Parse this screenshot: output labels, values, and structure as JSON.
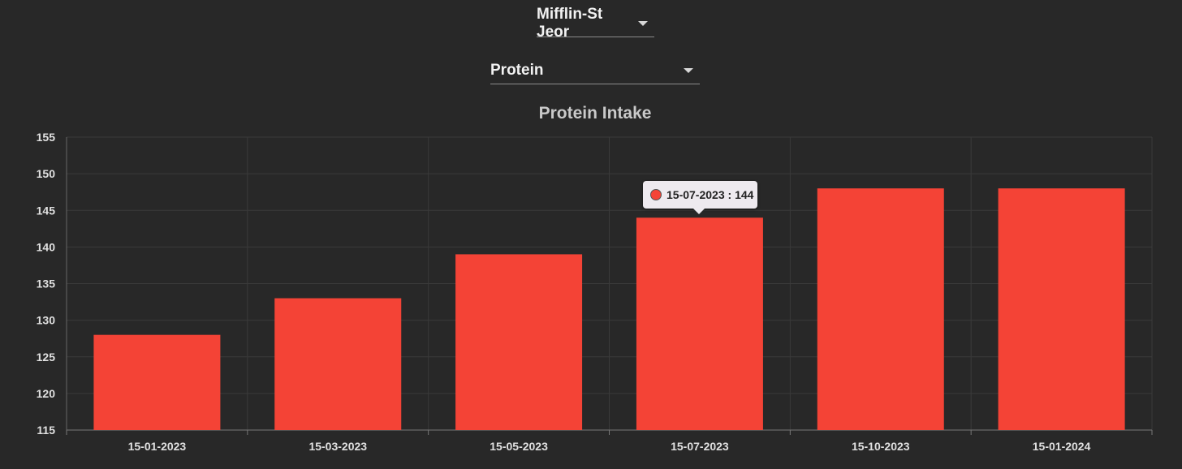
{
  "controls": {
    "formula_select": "Mifflin-St Jeor",
    "nutrient_select": "Protein"
  },
  "tooltip": {
    "date": "15-07-2023",
    "separator": " : ",
    "value": "144"
  },
  "colors": {
    "bar": "#f44336",
    "grid": "#3a3a3a",
    "axis_text": "#e0e0e0"
  },
  "chart_data": {
    "type": "bar",
    "title": "Protein Intake",
    "categories": [
      "15-01-2023",
      "15-03-2023",
      "15-05-2023",
      "15-07-2023",
      "15-10-2023",
      "15-01-2024"
    ],
    "values": [
      128,
      133,
      139,
      144,
      148,
      148
    ],
    "ylim": [
      115,
      155
    ],
    "yticks": [
      115,
      120,
      125,
      130,
      135,
      140,
      145,
      150,
      155
    ],
    "grid": true,
    "legend": false
  }
}
